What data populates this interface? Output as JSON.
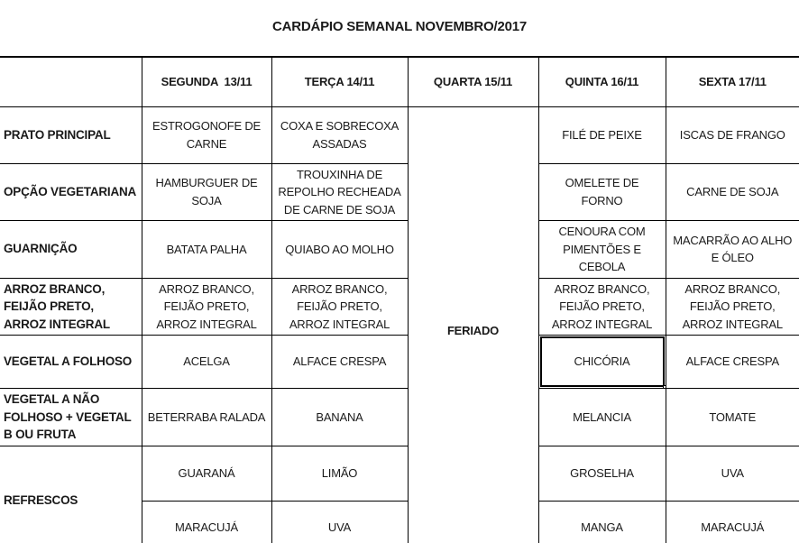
{
  "title": "CARDÁPIO SEMANAL NOVEMBRO/2017",
  "colors": {
    "background": "#ffffff",
    "border": "#000000",
    "text": "#1a1a1a"
  },
  "table": {
    "column_headers": {
      "corner": "",
      "segunda": "SEGUNDA  13/11",
      "terca": "TERÇA 14/11",
      "quarta": "QUARTA 15/11",
      "quinta": "QUINTA 16/11",
      "sexta": "SEXTA 17/11"
    },
    "holiday_label": "FERIADO",
    "rows": [
      {
        "header": "PRATO PRINCIPAL",
        "segunda": "ESTROGONOFE DE CARNE",
        "terca": "COXA E SOBRECOXA ASSADAS",
        "quinta": "FILÉ DE PEIXE",
        "sexta": "ISCAS DE FRANGO"
      },
      {
        "header": "OPÇÃO VEGETARIANA",
        "segunda": "HAMBURGUER DE SOJA",
        "terca": "TROUXINHA DE REPOLHO RECHEADA DE CARNE DE SOJA",
        "quinta": "OMELETE DE FORNO",
        "sexta": "CARNE DE SOJA"
      },
      {
        "header": "GUARNIÇÃO",
        "segunda": "BATATA PALHA",
        "terca": "QUIABO AO MOLHO",
        "quinta": "CENOURA COM PIMENTÕES E CEBOLA",
        "sexta": "MACARRÃO AO ALHO E ÓLEO"
      },
      {
        "header": "ARROZ BRANCO, FEIJÃO PRETO, ARROZ INTEGRAL",
        "segunda": "ARROZ BRANCO, FEIJÃO PRETO, ARROZ INTEGRAL",
        "terca": "ARROZ BRANCO, FEIJÃO PRETO, ARROZ INTEGRAL",
        "quinta": "ARROZ BRANCO, FEIJÃO PRETO, ARROZ INTEGRAL",
        "sexta": "ARROZ BRANCO, FEIJÃO PRETO, ARROZ INTEGRAL"
      },
      {
        "header": "VEGETAL A FOLHOSO",
        "segunda": "ACELGA",
        "terca": "ALFACE CRESPA",
        "quinta": "CHICÓRIA",
        "sexta": "ALFACE CRESPA"
      },
      {
        "header": "VEGETAL A NÃO FOLHOSO + VEGETAL B OU FRUTA",
        "segunda": "BETERRABA RALADA",
        "terca": "BANANA",
        "quinta": "MELANCIA",
        "sexta": "TOMATE"
      },
      {
        "header": "REFRESCOS",
        "segunda": "GUARANÁ",
        "terca": "LIMÃO",
        "quinta": "GROSELHA",
        "sexta": "UVA"
      },
      {
        "header": "",
        "segunda": "MARACUJÁ",
        "terca": "UVA",
        "quinta": "MANGA",
        "sexta": "MARACUJÁ"
      }
    ]
  }
}
